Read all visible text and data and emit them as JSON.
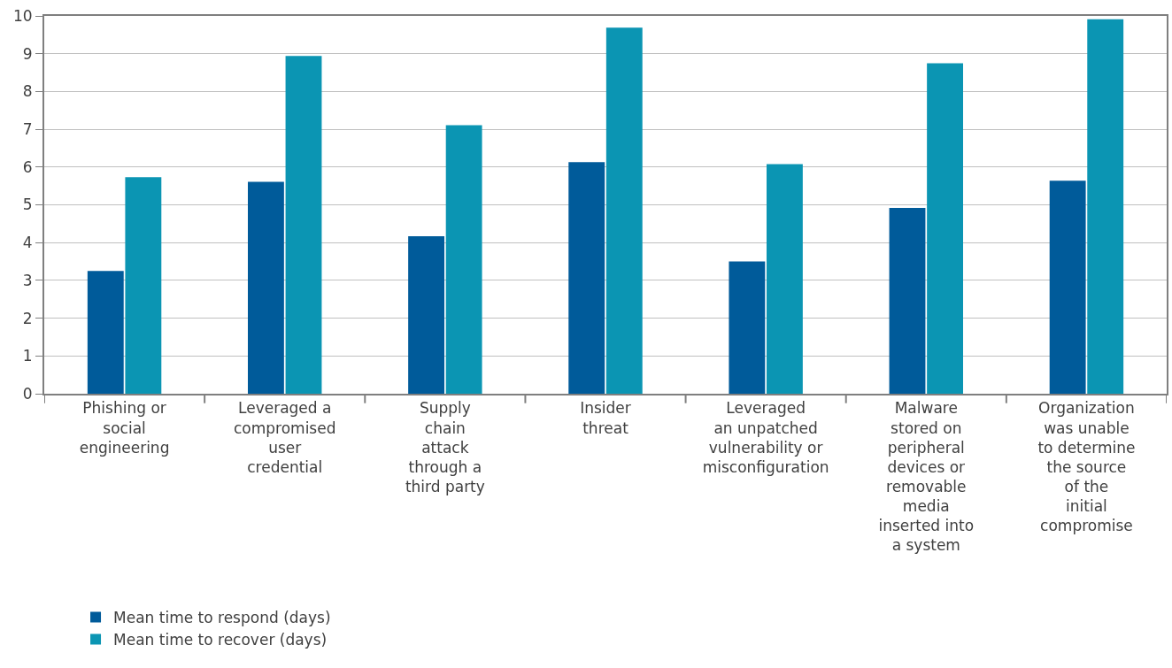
{
  "chart_data": {
    "type": "bar",
    "categories": [
      "Phishing or\nsocial\nengineering",
      "Leveraged a\ncompromised\nuser\ncredential",
      "Supply\nchain\nattack\nthrough a\nthird party",
      "Insider\nthreat",
      "Leveraged\nan unpatched\nvulnerability or\nmisconfiguration",
      "Malware\nstored on\nperipheral\ndevices or\nremovable\nmedia\ninserted into\na system",
      "Organization\nwas unable\nto determine\nthe source\nof the\ninitial\ncompromise"
    ],
    "series": [
      {
        "name": "Mean time to respond (days)",
        "color": "#005b9a",
        "values": [
          3.25,
          5.61,
          4.17,
          6.13,
          3.5,
          4.92,
          5.64
        ]
      },
      {
        "name": "Mean time to recover (days)",
        "color": "#0b95b3",
        "values": [
          5.73,
          8.94,
          7.11,
          9.69,
          6.08,
          8.75,
          9.91
        ]
      }
    ],
    "ylim": [
      0,
      10
    ],
    "yticks": [
      0,
      1,
      2,
      3,
      4,
      5,
      6,
      7,
      8,
      9,
      10
    ],
    "grid": "y",
    "legend": "bottom left"
  }
}
